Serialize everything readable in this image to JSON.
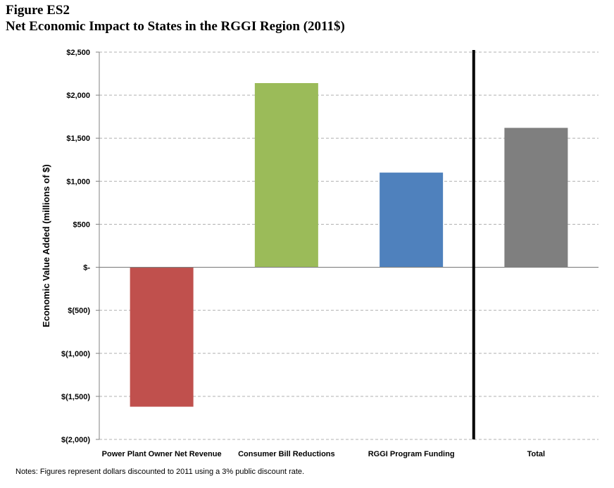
{
  "figure_label": "Figure ES2",
  "title": "Net Economic Impact to States in the RGGI Region (2011$)",
  "notes": "Notes: Figures represent dollars discounted to 2011 using a 3% public discount rate.",
  "chart_data": {
    "type": "bar",
    "title": "Net Economic Impact to States in the RGGI Region (2011$)",
    "xlabel": "",
    "ylabel": "Economic Value Added (millions of $)",
    "categories": [
      "Power Plant Owner Net Revenue",
      "Consumer Bill Reductions",
      "RGGI Program Funding",
      "Total"
    ],
    "values": [
      -1620,
      2140,
      1100,
      1620
    ],
    "colors": [
      "#C0504D",
      "#9BBB59",
      "#4F81BD",
      "#7F7F7F"
    ],
    "ylim": [
      -2000,
      2500
    ],
    "yticks": [
      2500,
      2000,
      1500,
      1000,
      500,
      0,
      -500,
      -1000,
      -1500,
      -2000
    ],
    "ytick_labels": [
      "$2,500",
      "$2,000",
      "$1,500",
      "$1,000",
      "$500",
      "$-",
      "$(500)",
      "$(1,000)",
      "$(1,500)",
      "$(2,000)"
    ],
    "grid": true,
    "separator_before_category": "Total"
  }
}
